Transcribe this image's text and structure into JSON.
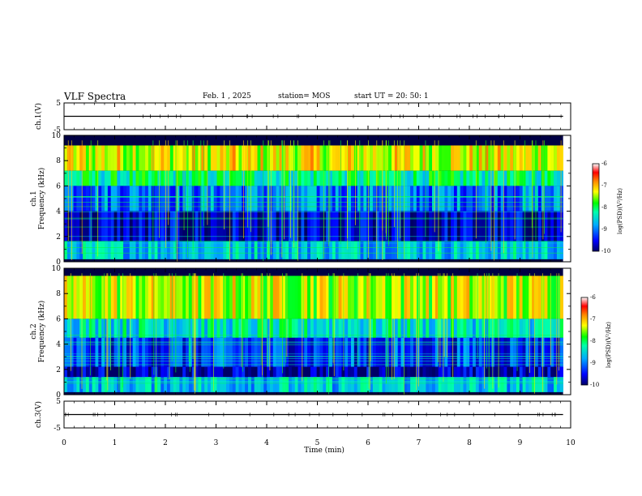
{
  "header": {
    "title": "VLF Spectra",
    "date": "Feb. 1 , 2025",
    "station": "station= MOS",
    "start": "start UT = 20: 50: 1"
  },
  "chart_data": [
    {
      "type": "line",
      "name": "ch1-waveform",
      "ylabel": "ch.1(V)",
      "ylim": [
        -5,
        5
      ],
      "yticks": [
        "5",
        "-5"
      ],
      "x": [
        0,
        9.85
      ],
      "y": [
        0,
        0
      ]
    },
    {
      "type": "heatmap",
      "name": "ch1-spectrogram",
      "ylabel": "ch.1\nFrequency (kHz)",
      "ylim": [
        0,
        10
      ],
      "yticks": [
        "0",
        "2",
        "4",
        "6",
        "8",
        "10"
      ],
      "xlim": [
        0,
        10
      ],
      "bands": [
        {
          "from_khz": 7.2,
          "to_khz": 9.2,
          "level": -7.3
        },
        {
          "from_khz": 6.0,
          "to_khz": 7.2,
          "level": -8.2
        },
        {
          "from_khz": 4.0,
          "to_khz": 6.0,
          "level": -9.0
        },
        {
          "from_khz": 1.6,
          "to_khz": 4.0,
          "level": -9.7
        },
        {
          "from_khz": 0.2,
          "to_khz": 1.6,
          "level": -8.6
        }
      ]
    },
    {
      "type": "heatmap",
      "name": "ch2-spectrogram",
      "ylabel": "ch.2\nFrequency (kHz)",
      "ylim": [
        0,
        10
      ],
      "yticks": [
        "0",
        "2",
        "4",
        "6",
        "8",
        "10"
      ],
      "xlim": [
        0,
        10
      ],
      "bands": [
        {
          "from_khz": 6.0,
          "to_khz": 9.4,
          "level": -7.4
        },
        {
          "from_khz": 4.5,
          "to_khz": 6.0,
          "level": -8.4
        },
        {
          "from_khz": 2.2,
          "to_khz": 4.5,
          "level": -9.3
        },
        {
          "from_khz": 1.4,
          "to_khz": 2.2,
          "level": -9.8
        },
        {
          "from_khz": 0.2,
          "to_khz": 1.4,
          "level": -8.6
        }
      ]
    },
    {
      "type": "line",
      "name": "ch3-waveform",
      "ylabel": "ch.3(V)",
      "ylim": [
        -5,
        5
      ],
      "yticks": [
        "5",
        "-5"
      ],
      "x": [
        0,
        9.85
      ],
      "y": [
        0,
        0
      ]
    }
  ],
  "xaxis": {
    "label": "Time (min)",
    "ticks": [
      "0",
      "1",
      "2",
      "3",
      "4",
      "5",
      "6",
      "7",
      "8",
      "9",
      "10"
    ],
    "xlim": [
      0,
      10
    ]
  },
  "colorbar": {
    "label": "log(PSD)(V²/Hz)",
    "ticks": [
      "-6",
      "-7",
      "-8",
      "-9",
      "-10"
    ],
    "range": [
      -10,
      -6
    ]
  },
  "colors": {
    "scale": [
      "#000066",
      "#0000ff",
      "#00aaff",
      "#00ffaa",
      "#00ff00",
      "#ffff00",
      "#ff8800",
      "#ff0000",
      "#ffffff"
    ]
  }
}
